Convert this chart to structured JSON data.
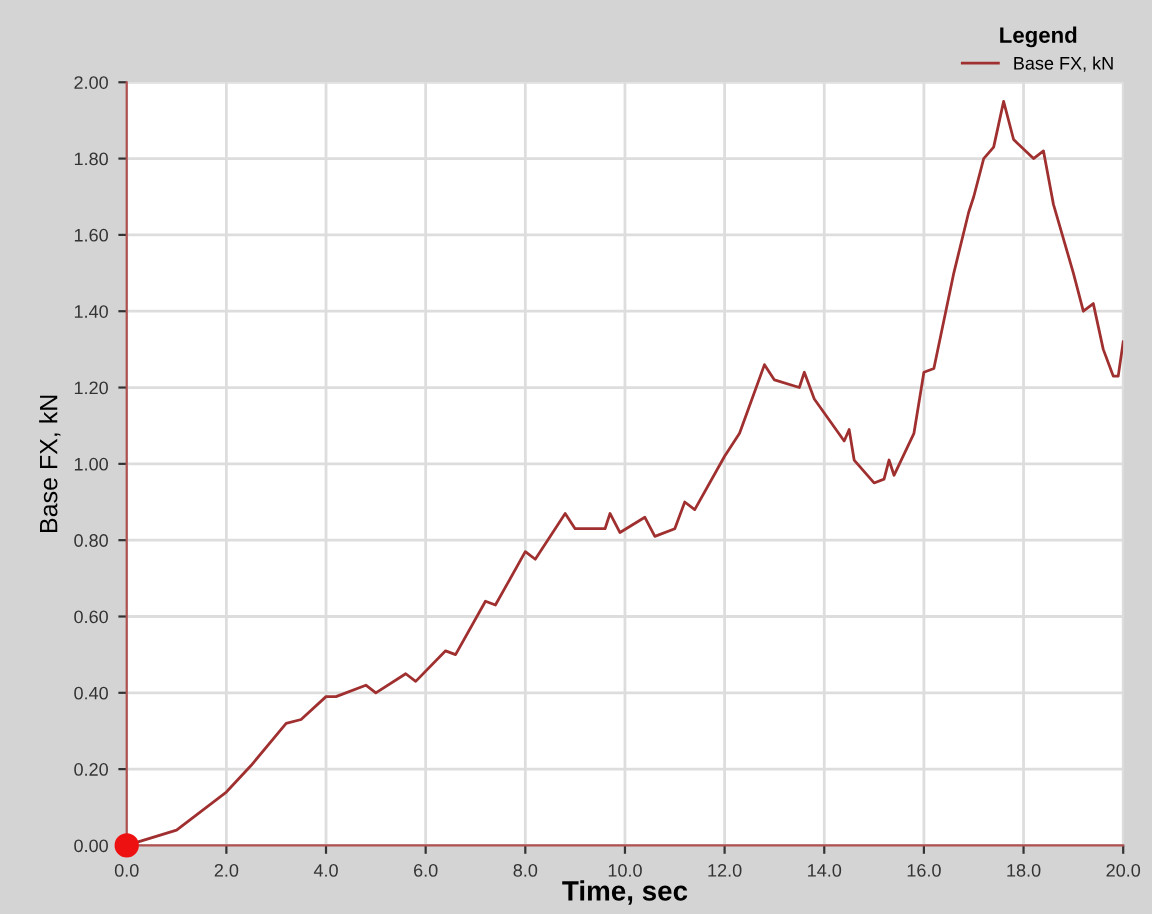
{
  "chart_data": {
    "type": "line",
    "xlabel": "Time, sec",
    "ylabel": "Base FX, kN",
    "legend_title": "Legend",
    "legend": "top right",
    "grid": true,
    "xlim": [
      0,
      20
    ],
    "ylim": [
      0,
      2
    ],
    "xticks": [
      {
        "value": 0,
        "label": "0.0"
      },
      {
        "value": 2,
        "label": "2.0"
      },
      {
        "value": 4,
        "label": "4.0"
      },
      {
        "value": 6,
        "label": "6.0"
      },
      {
        "value": 8,
        "label": "8.0"
      },
      {
        "value": 10,
        "label": "10.0"
      },
      {
        "value": 12,
        "label": "12.0"
      },
      {
        "value": 14,
        "label": "14.0"
      },
      {
        "value": 16,
        "label": "16.0"
      },
      {
        "value": 18,
        "label": "18.0"
      },
      {
        "value": 20,
        "label": "20.0"
      }
    ],
    "yticks": [
      {
        "value": 0,
        "label": "0.00"
      },
      {
        "value": 0.2,
        "label": "0.20"
      },
      {
        "value": 0.4,
        "label": "0.40"
      },
      {
        "value": 0.6,
        "label": "0.60"
      },
      {
        "value": 0.8,
        "label": "0.80"
      },
      {
        "value": 1.0,
        "label": "1.00"
      },
      {
        "value": 1.2,
        "label": "1.20"
      },
      {
        "value": 1.4,
        "label": "1.40"
      },
      {
        "value": 1.6,
        "label": "1.60"
      },
      {
        "value": 1.8,
        "label": "1.80"
      },
      {
        "value": 2.0,
        "label": "2.00"
      }
    ],
    "series": [
      {
        "name": "Base FX, kN",
        "color": "#a03030",
        "x": [
          0,
          1,
          2,
          2.5,
          3.2,
          3.5,
          4,
          4.2,
          4.8,
          5,
          5.6,
          5.8,
          6.4,
          6.6,
          7.2,
          7.4,
          8,
          8.2,
          8.8,
          9,
          9.6,
          9.7,
          9.9,
          10.4,
          10.6,
          11,
          11.2,
          11.4,
          12,
          12.3,
          12.8,
          13,
          13.5,
          13.6,
          13.8,
          14.4,
          14.5,
          14.6,
          15,
          15.2,
          15.3,
          15.4,
          15.8,
          16,
          16.2,
          16.6,
          16.9,
          17,
          17.2,
          17.4,
          17.6,
          17.8,
          18.2,
          18.4,
          18.6,
          19,
          19.2,
          19.4,
          19.6,
          19.8,
          19.9,
          20
        ],
        "values": [
          0,
          0.04,
          0.14,
          0.21,
          0.32,
          0.33,
          0.39,
          0.39,
          0.42,
          0.4,
          0.45,
          0.43,
          0.51,
          0.5,
          0.64,
          0.63,
          0.77,
          0.75,
          0.87,
          0.83,
          0.83,
          0.87,
          0.82,
          0.86,
          0.81,
          0.83,
          0.9,
          0.88,
          1.02,
          1.08,
          1.26,
          1.22,
          1.2,
          1.24,
          1.17,
          1.06,
          1.09,
          1.01,
          0.95,
          0.96,
          1.01,
          0.97,
          1.08,
          1.24,
          1.25,
          1.5,
          1.66,
          1.7,
          1.8,
          1.83,
          1.95,
          1.85,
          1.8,
          1.82,
          1.68,
          1.5,
          1.4,
          1.42,
          1.3,
          1.23,
          1.23,
          1.32
        ]
      },
      {
        "type": "scatter",
        "color": "#ee1111",
        "marker": "circle",
        "x": [
          0
        ],
        "values": [
          0
        ]
      }
    ]
  }
}
